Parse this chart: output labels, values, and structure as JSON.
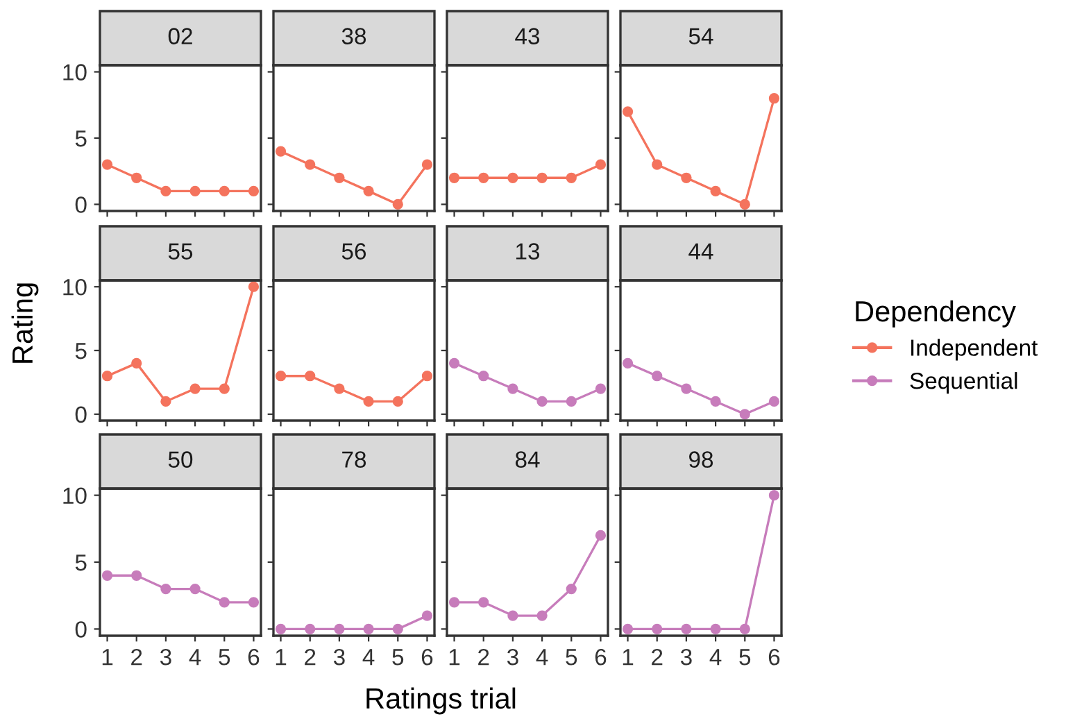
{
  "chart_data": [
    {
      "type": "line",
      "title": "02",
      "x": [
        1,
        2,
        3,
        4,
        5,
        6
      ],
      "series": [
        {
          "name": "Independent",
          "color": "#f4735d",
          "values": [
            3,
            2,
            1,
            1,
            1,
            1
          ]
        }
      ],
      "xlim": [
        0.75,
        6.25
      ],
      "ylim": [
        -0.5,
        10.5
      ],
      "xticks": [
        1,
        2,
        3,
        4,
        5,
        6
      ],
      "yticks": [
        0,
        5,
        10
      ],
      "tick_labels": "y",
      "marker": "circle",
      "line_style": "solid",
      "grid": false
    },
    {
      "type": "line",
      "title": "38",
      "x": [
        1,
        2,
        3,
        4,
        5,
        6
      ],
      "series": [
        {
          "name": "Independent",
          "color": "#f4735d",
          "values": [
            4,
            3,
            2,
            1,
            0,
            3
          ]
        }
      ],
      "xlim": [
        0.75,
        6.25
      ],
      "ylim": [
        -0.5,
        10.5
      ],
      "xticks": [
        1,
        2,
        3,
        4,
        5,
        6
      ],
      "yticks": [
        0,
        5,
        10
      ],
      "tick_labels": false,
      "marker": "circle",
      "line_style": "solid",
      "grid": false
    },
    {
      "type": "line",
      "title": "43",
      "x": [
        1,
        2,
        3,
        4,
        5,
        6
      ],
      "series": [
        {
          "name": "Independent",
          "color": "#f4735d",
          "values": [
            2,
            2,
            2,
            2,
            2,
            3
          ]
        }
      ],
      "xlim": [
        0.75,
        6.25
      ],
      "ylim": [
        -0.5,
        10.5
      ],
      "xticks": [
        1,
        2,
        3,
        4,
        5,
        6
      ],
      "yticks": [
        0,
        5,
        10
      ],
      "tick_labels": false,
      "marker": "circle",
      "line_style": "solid",
      "grid": false
    },
    {
      "type": "line",
      "title": "54",
      "x": [
        1,
        2,
        3,
        4,
        5,
        6
      ],
      "series": [
        {
          "name": "Independent",
          "color": "#f4735d",
          "values": [
            7,
            3,
            2,
            1,
            0,
            8
          ]
        }
      ],
      "xlim": [
        0.75,
        6.25
      ],
      "ylim": [
        -0.5,
        10.5
      ],
      "xticks": [
        1,
        2,
        3,
        4,
        5,
        6
      ],
      "yticks": [
        0,
        5,
        10
      ],
      "tick_labels": false,
      "marker": "circle",
      "line_style": "solid",
      "grid": false
    },
    {
      "type": "line",
      "title": "55",
      "ylabel": "Rating",
      "x": [
        1,
        2,
        3,
        4,
        5,
        6
      ],
      "series": [
        {
          "name": "Independent",
          "color": "#f4735d",
          "values": [
            3,
            4,
            1,
            2,
            2,
            10
          ]
        }
      ],
      "xlim": [
        0.75,
        6.25
      ],
      "ylim": [
        -0.5,
        10.5
      ],
      "xticks": [
        1,
        2,
        3,
        4,
        5,
        6
      ],
      "yticks": [
        0,
        5,
        10
      ],
      "tick_labels": "y",
      "marker": "circle",
      "line_style": "solid",
      "grid": false
    },
    {
      "type": "line",
      "title": "56",
      "x": [
        1,
        2,
        3,
        4,
        5,
        6
      ],
      "series": [
        {
          "name": "Independent",
          "color": "#f4735d",
          "values": [
            3,
            3,
            2,
            1,
            1,
            3
          ]
        }
      ],
      "xlim": [
        0.75,
        6.25
      ],
      "ylim": [
        -0.5,
        10.5
      ],
      "xticks": [
        1,
        2,
        3,
        4,
        5,
        6
      ],
      "yticks": [
        0,
        5,
        10
      ],
      "tick_labels": false,
      "marker": "circle",
      "line_style": "solid",
      "grid": false
    },
    {
      "type": "line",
      "title": "13",
      "x": [
        1,
        2,
        3,
        4,
        5,
        6
      ],
      "series": [
        {
          "name": "Sequential",
          "color": "#c77cbb",
          "values": [
            4,
            3,
            2,
            1,
            1,
            2
          ]
        }
      ],
      "xlim": [
        0.75,
        6.25
      ],
      "ylim": [
        -0.5,
        10.5
      ],
      "xticks": [
        1,
        2,
        3,
        4,
        5,
        6
      ],
      "yticks": [
        0,
        5,
        10
      ],
      "tick_labels": false,
      "marker": "circle",
      "line_style": "solid",
      "grid": false
    },
    {
      "type": "line",
      "title": "44",
      "legend": "right",
      "legend_title": "Dependency",
      "x": [
        1,
        2,
        3,
        4,
        5,
        6
      ],
      "series": [
        {
          "name": "Sequential",
          "color": "#c77cbb",
          "values": [
            4,
            3,
            2,
            1,
            0,
            1
          ]
        }
      ],
      "xlim": [
        0.75,
        6.25
      ],
      "ylim": [
        -0.5,
        10.5
      ],
      "xticks": [
        1,
        2,
        3,
        4,
        5,
        6
      ],
      "yticks": [
        0,
        5,
        10
      ],
      "tick_labels": false,
      "marker": "circle",
      "line_style": "solid",
      "grid": false
    },
    {
      "type": "line",
      "title": "50",
      "x": [
        1,
        2,
        3,
        4,
        5,
        6
      ],
      "series": [
        {
          "name": "Sequential",
          "color": "#c77cbb",
          "values": [
            4,
            4,
            3,
            3,
            2,
            2
          ]
        }
      ],
      "xlim": [
        0.75,
        6.25
      ],
      "ylim": [
        -0.5,
        10.5
      ],
      "xticks": [
        1,
        2,
        3,
        4,
        5,
        6
      ],
      "yticks": [
        0,
        5,
        10
      ],
      "marker": "circle",
      "line_style": "solid",
      "grid": false
    },
    {
      "type": "line",
      "title": "78",
      "xlabel": "Ratings trial",
      "x": [
        1,
        2,
        3,
        4,
        5,
        6
      ],
      "series": [
        {
          "name": "Sequential",
          "color": "#c77cbb",
          "values": [
            0,
            0,
            0,
            0,
            0,
            1
          ]
        }
      ],
      "xlim": [
        0.75,
        6.25
      ],
      "ylim": [
        -0.5,
        10.5
      ],
      "xticks": [
        1,
        2,
        3,
        4,
        5,
        6
      ],
      "yticks": [
        0,
        5,
        10
      ],
      "tick_labels": "x",
      "marker": "circle",
      "line_style": "solid",
      "grid": false
    },
    {
      "type": "line",
      "title": "84",
      "x": [
        1,
        2,
        3,
        4,
        5,
        6
      ],
      "series": [
        {
          "name": "Sequential",
          "color": "#c77cbb",
          "values": [
            2,
            2,
            1,
            1,
            3,
            7
          ]
        }
      ],
      "xlim": [
        0.75,
        6.25
      ],
      "ylim": [
        -0.5,
        10.5
      ],
      "xticks": [
        1,
        2,
        3,
        4,
        5,
        6
      ],
      "yticks": [
        0,
        5,
        10
      ],
      "tick_labels": "x",
      "marker": "circle",
      "line_style": "solid",
      "grid": false
    },
    {
      "type": "line",
      "title": "98",
      "x": [
        1,
        2,
        3,
        4,
        5,
        6
      ],
      "series": [
        {
          "name": "Sequential",
          "color": "#c77cbb",
          "values": [
            0,
            0,
            0,
            0,
            0,
            10
          ]
        }
      ],
      "xlim": [
        0.75,
        6.25
      ],
      "ylim": [
        -0.5,
        10.5
      ],
      "xticks": [
        1,
        2,
        3,
        4,
        5,
        6
      ],
      "yticks": [
        0,
        5,
        10
      ],
      "tick_labels": "x",
      "marker": "circle",
      "line_style": "solid",
      "grid": false
    }
  ]
}
